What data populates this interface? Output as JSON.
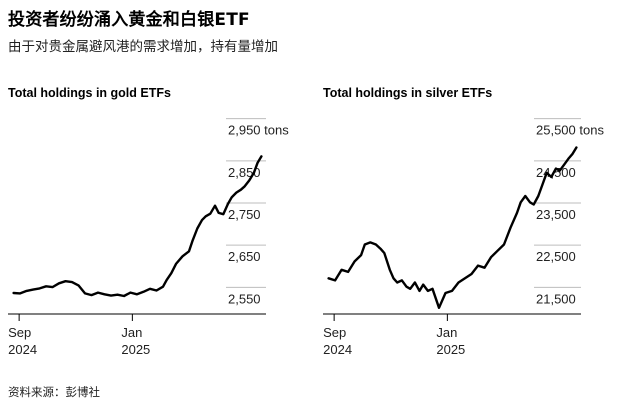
{
  "headline": "投资者纷纷涌入黄金和白银ETF",
  "subheadline": "由于对贵金属避风港的需求增加，持有量增加",
  "source": "资料来源：彭博社",
  "chart_data": [
    {
      "type": "line",
      "title": "Total holdings in gold ETFs",
      "unit": "tons",
      "ylim": [
        2520,
        2980
      ],
      "y_ticks": [
        2550,
        2650,
        2750,
        2850,
        2950
      ],
      "y_tick_labels": [
        "2,550",
        "2,650",
        "2,750",
        "2,850",
        "2,950 tons"
      ],
      "x_ticks": [
        {
          "x": "2024-09-01",
          "label": "Sep",
          "year": "2024"
        },
        {
          "x": "2025-01-01",
          "label": "Jan",
          "year": "2025"
        }
      ],
      "xlim": [
        "2024-08-20",
        "2025-05-25"
      ],
      "series": [
        {
          "color": "#000000",
          "points": [
            [
              "2024-08-26",
              2565
            ],
            [
              "2024-09-02",
              2564
            ],
            [
              "2024-09-09",
              2570
            ],
            [
              "2024-09-16",
              2573
            ],
            [
              "2024-09-23",
              2576
            ],
            [
              "2024-09-30",
              2581
            ],
            [
              "2024-10-07",
              2579
            ],
            [
              "2024-10-14",
              2588
            ],
            [
              "2024-10-21",
              2593
            ],
            [
              "2024-10-28",
              2591
            ],
            [
              "2024-11-04",
              2583
            ],
            [
              "2024-11-11",
              2564
            ],
            [
              "2024-11-18",
              2560
            ],
            [
              "2024-11-25",
              2566
            ],
            [
              "2024-12-02",
              2562
            ],
            [
              "2024-12-09",
              2559
            ],
            [
              "2024-12-16",
              2561
            ],
            [
              "2024-12-23",
              2558
            ],
            [
              "2024-12-30",
              2566
            ],
            [
              "2025-01-06",
              2562
            ],
            [
              "2025-01-13",
              2568
            ],
            [
              "2025-01-20",
              2575
            ],
            [
              "2025-01-27",
              2571
            ],
            [
              "2025-02-03",
              2580
            ],
            [
              "2025-02-07",
              2596
            ],
            [
              "2025-02-12",
              2612
            ],
            [
              "2025-02-17",
              2634
            ],
            [
              "2025-02-24",
              2652
            ],
            [
              "2025-03-03",
              2664
            ],
            [
              "2025-03-07",
              2690
            ],
            [
              "2025-03-12",
              2718
            ],
            [
              "2025-03-17",
              2738
            ],
            [
              "2025-03-21",
              2747
            ],
            [
              "2025-03-26",
              2753
            ],
            [
              "2025-03-31",
              2772
            ],
            [
              "2025-04-04",
              2755
            ],
            [
              "2025-04-09",
              2752
            ],
            [
              "2025-04-14",
              2776
            ],
            [
              "2025-04-18",
              2792
            ],
            [
              "2025-04-23",
              2803
            ],
            [
              "2025-04-28",
              2810
            ],
            [
              "2025-05-02",
              2818
            ],
            [
              "2025-05-07",
              2832
            ],
            [
              "2025-05-12",
              2850
            ],
            [
              "2025-05-16",
              2874
            ],
            [
              "2025-05-20",
              2889
            ]
          ]
        }
      ]
    },
    {
      "type": "line",
      "title": "Total holdings in silver ETFs",
      "unit": "tons",
      "ylim": [
        21200,
        25800
      ],
      "y_ticks": [
        21500,
        22500,
        23500,
        24500,
        25500
      ],
      "y_tick_labels": [
        "21,500",
        "22,500",
        "23,500",
        "24,500",
        "25,500 tons"
      ],
      "x_ticks": [
        {
          "x": "2024-09-01",
          "label": "Sep",
          "year": "2024"
        },
        {
          "x": "2025-01-01",
          "label": "Jan",
          "year": "2025"
        }
      ],
      "xlim": [
        "2024-08-20",
        "2025-05-25"
      ],
      "series": [
        {
          "color": "#000000",
          "points": [
            [
              "2024-08-26",
              22000
            ],
            [
              "2024-09-02",
              21950
            ],
            [
              "2024-09-09",
              22200
            ],
            [
              "2024-09-16",
              22150
            ],
            [
              "2024-09-23",
              22400
            ],
            [
              "2024-09-30",
              22550
            ],
            [
              "2024-10-04",
              22800
            ],
            [
              "2024-10-10",
              22850
            ],
            [
              "2024-10-16",
              22800
            ],
            [
              "2024-10-21",
              22700
            ],
            [
              "2024-10-25",
              22600
            ],
            [
              "2024-10-31",
              22200
            ],
            [
              "2024-11-04",
              22000
            ],
            [
              "2024-11-08",
              21900
            ],
            [
              "2024-11-13",
              21950
            ],
            [
              "2024-11-18",
              21800
            ],
            [
              "2024-11-22",
              21750
            ],
            [
              "2024-11-27",
              21900
            ],
            [
              "2024-12-02",
              21700
            ],
            [
              "2024-12-06",
              21850
            ],
            [
              "2024-12-11",
              21700
            ],
            [
              "2024-12-16",
              21750
            ],
            [
              "2024-12-23",
              21300
            ],
            [
              "2024-12-30",
              21650
            ],
            [
              "2025-01-06",
              21700
            ],
            [
              "2025-01-13",
              21900
            ],
            [
              "2025-01-20",
              22000
            ],
            [
              "2025-01-27",
              22100
            ],
            [
              "2025-02-03",
              22300
            ],
            [
              "2025-02-10",
              22250
            ],
            [
              "2025-02-17",
              22500
            ],
            [
              "2025-02-24",
              22650
            ],
            [
              "2025-03-03",
              22800
            ],
            [
              "2025-03-10",
              23200
            ],
            [
              "2025-03-17",
              23550
            ],
            [
              "2025-03-21",
              23800
            ],
            [
              "2025-03-26",
              23950
            ],
            [
              "2025-03-31",
              23800
            ],
            [
              "2025-04-04",
              23750
            ],
            [
              "2025-04-09",
              23950
            ],
            [
              "2025-04-14",
              24250
            ],
            [
              "2025-04-18",
              24500
            ],
            [
              "2025-04-23",
              24400
            ],
            [
              "2025-04-28",
              24600
            ],
            [
              "2025-05-02",
              24550
            ],
            [
              "2025-05-07",
              24700
            ],
            [
              "2025-05-12",
              24850
            ],
            [
              "2025-05-16",
              24950
            ],
            [
              "2025-05-20",
              25100
            ]
          ]
        }
      ]
    }
  ]
}
